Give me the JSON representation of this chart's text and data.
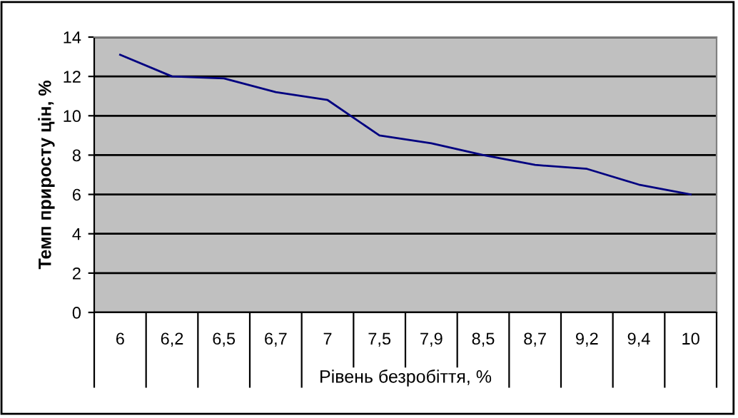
{
  "chart_data": {
    "type": "line",
    "xlabel": "Рівень безробіття, %",
    "ylabel": "Темп приросту цін, %",
    "categories": [
      "6",
      "6,2",
      "6,5",
      "6,7",
      "7",
      "7,5",
      "7,9",
      "8,5",
      "8,7",
      "9,2",
      "9,4",
      "10"
    ],
    "series": [
      {
        "color": "#000080",
        "values": [
          13.1,
          12.0,
          11.9,
          11.2,
          10.8,
          9.0,
          8.6,
          8.0,
          7.5,
          7.3,
          6.5,
          6.0
        ]
      }
    ],
    "ylim": [
      0,
      14
    ],
    "yticks": [
      0,
      2,
      4,
      6,
      8,
      10,
      12,
      14
    ],
    "grid": "y",
    "legend": false,
    "marker": "none",
    "line_style": "solid"
  }
}
